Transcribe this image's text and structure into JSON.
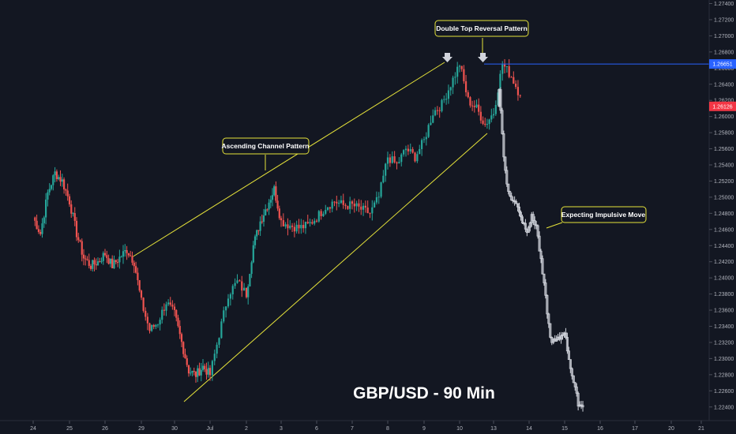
{
  "chart_data": {
    "type": "candlestick",
    "title": "GBP/USD -  90 Min",
    "x_ticks": [
      "24",
      "25",
      "26",
      "29",
      "30",
      "Jul",
      "2",
      "3",
      "6",
      "7",
      "8",
      "9",
      "10",
      "13",
      "14",
      "15",
      "16",
      "17",
      "20",
      "21"
    ],
    "y_ticks": [
      "1.27400",
      "1.27200",
      "1.27000",
      "1.26800",
      "1.26600",
      "1.26400",
      "1.26200",
      "1.26000",
      "1.25800",
      "1.25600",
      "1.25400",
      "1.25200",
      "1.25000",
      "1.24800",
      "1.24600",
      "1.24400",
      "1.24200",
      "1.24000",
      "1.23800",
      "1.23600",
      "1.23400",
      "1.23200",
      "1.23000",
      "1.22800",
      "1.22600",
      "1.22400"
    ],
    "ylim": [
      1.2235,
      1.2745
    ],
    "price_labels": {
      "resistance": {
        "value": "1.26651",
        "color": "#2962ff"
      },
      "last_price": {
        "value": "1.26126",
        "color": "#f23645"
      }
    },
    "annotations": [
      {
        "text": "Double Top Reversal Pattern"
      },
      {
        "text": "Ascending Channel Pattern"
      },
      {
        "text": "Expecting Impulsive Move"
      }
    ],
    "colors": {
      "up": "#26a69a",
      "down": "#ef5350",
      "projection": "#d1d4dc",
      "channel": "#e6e33a",
      "annotation_border": "#e6e33a",
      "background": "#131722"
    },
    "anchors": [
      [
        "24",
        1.2475
      ],
      [
        "24",
        1.2455
      ],
      [
        "24",
        1.2505
      ],
      [
        "24",
        1.253
      ],
      [
        "24",
        1.252
      ],
      [
        "25",
        1.2495
      ],
      [
        "25",
        1.2455
      ],
      [
        "25",
        1.2425
      ],
      [
        "25",
        1.2415
      ],
      [
        "25",
        1.242
      ],
      [
        "26",
        1.243
      ],
      [
        "26",
        1.2415
      ],
      [
        "26",
        1.2425
      ],
      [
        "26",
        1.2435
      ],
      [
        "26",
        1.242
      ],
      [
        "29",
        1.237
      ],
      [
        "29",
        1.2335
      ],
      [
        "29",
        1.2345
      ],
      [
        "29",
        1.237
      ],
      [
        "30",
        1.2355
      ],
      [
        "30",
        1.232
      ],
      [
        "30",
        1.2285
      ],
      [
        "30",
        1.228
      ],
      [
        "30",
        1.229
      ],
      [
        "Jul",
        1.228
      ],
      [
        "Jul",
        1.233
      ],
      [
        "Jul",
        1.238
      ],
      [
        "Jul",
        1.2395
      ],
      [
        "2",
        1.238
      ],
      [
        "2",
        1.244
      ],
      [
        "2",
        1.247
      ],
      [
        "2",
        1.249
      ],
      [
        "2",
        1.251
      ],
      [
        "3",
        1.247
      ],
      [
        "3",
        1.2465
      ],
      [
        "3",
        1.2462
      ],
      [
        "3",
        1.2465
      ],
      [
        "6",
        1.2475
      ],
      [
        "6",
        1.2488
      ],
      [
        "6",
        1.2495
      ],
      [
        "6",
        1.249
      ],
      [
        "7",
        1.249
      ],
      [
        "7",
        1.2485
      ],
      [
        "7",
        1.248
      ],
      [
        "7",
        1.25
      ],
      [
        "8",
        1.255
      ],
      [
        "8",
        1.254
      ],
      [
        "8",
        1.256
      ],
      [
        "8",
        1.255
      ],
      [
        "9",
        1.257
      ],
      [
        "9",
        1.2605
      ],
      [
        "9",
        1.2615
      ],
      [
        "9",
        1.264
      ],
      [
        "10",
        1.2665
      ],
      [
        "10",
        1.262
      ],
      [
        "10",
        1.261
      ],
      [
        "10",
        1.259
      ],
      [
        "13",
        1.2605
      ],
      [
        "13",
        1.2665
      ],
      [
        "13",
        1.265
      ],
      [
        "13",
        1.2626
      ]
    ],
    "projection": [
      [
        "13",
        1.2635
      ],
      [
        "13",
        1.255
      ],
      [
        "13",
        1.2505
      ],
      [
        "13",
        1.2495
      ],
      [
        "13",
        1.249
      ],
      [
        "14",
        1.247
      ],
      [
        "14",
        1.246
      ],
      [
        "14",
        1.2475
      ],
      [
        "14",
        1.2465
      ],
      [
        "14",
        1.242
      ],
      [
        "14",
        1.2375
      ],
      [
        "14",
        1.2325
      ],
      [
        "15",
        1.232
      ],
      [
        "15",
        1.2325
      ],
      [
        "15",
        1.2335
      ],
      [
        "15",
        1.23
      ],
      [
        "15",
        1.227
      ],
      [
        "15",
        1.2245
      ],
      [
        "15",
        1.224
      ]
    ]
  }
}
